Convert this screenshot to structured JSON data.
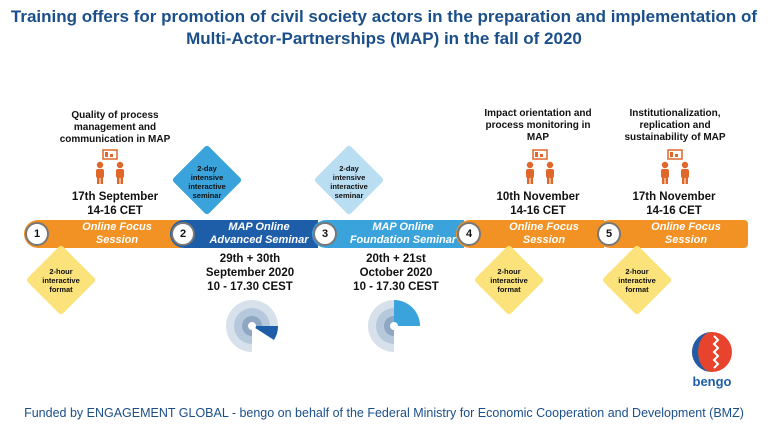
{
  "title_line1": "Training offers for promotion of civil society actors in the preparation and implementation of",
  "title_line2": "Multi-Actor-Partnerships (MAP) in the fall of 2020",
  "colors": {
    "orange": "#f29124",
    "blue": "#1e5ea8",
    "lightblue": "#3aa3dc",
    "yellow": "#fbe27a",
    "title": "#1b4f8a"
  },
  "sessions": [
    {
      "num": "1",
      "label1": "Online Focus",
      "label2": "Session",
      "topic": [
        "Quality of process",
        "management and",
        "communication in MAP"
      ],
      "date": [
        "17th September",
        "14-16 CET"
      ],
      "badge": [
        "2-hour",
        "interactive",
        "format"
      ]
    },
    {
      "num": "2",
      "label1": "MAP Online",
      "label2": "Advanced Seminar",
      "date": [
        "29th + 30th",
        "September 2020",
        "10 - 17.30 CEST"
      ],
      "badge": [
        "2-day",
        "intensive",
        "interactive",
        "seminar"
      ]
    },
    {
      "num": "3",
      "label1": "MAP Online",
      "label2": "Foundation Seminar",
      "date": [
        "20th + 21st",
        "October 2020",
        "10 - 17.30 CEST"
      ],
      "badge": [
        "2-day",
        "intensive",
        "interactive",
        "seminar"
      ]
    },
    {
      "num": "4",
      "label1": "Online Focus",
      "label2": "Session",
      "topic": [
        "Impact orientation and",
        "process monitoring in",
        "MAP"
      ],
      "date": [
        "10th November",
        "14-16 CET"
      ],
      "badge": [
        "2-hour",
        "interactive",
        "format"
      ]
    },
    {
      "num": "5",
      "label1": "Online Focus",
      "label2": "Session",
      "topic": [
        "Institutionalization,",
        "replication and",
        "sustainability of MAP"
      ],
      "date": [
        "17th November",
        "14-16 CET"
      ],
      "badge": [
        "2-hour",
        "interactive",
        "format"
      ]
    }
  ],
  "logo_text": "bengo",
  "footer": "Funded by ENGAGEMENT GLOBAL - bengo on behalf of the Federal Ministry for Economic Cooperation and Development (BMZ)"
}
